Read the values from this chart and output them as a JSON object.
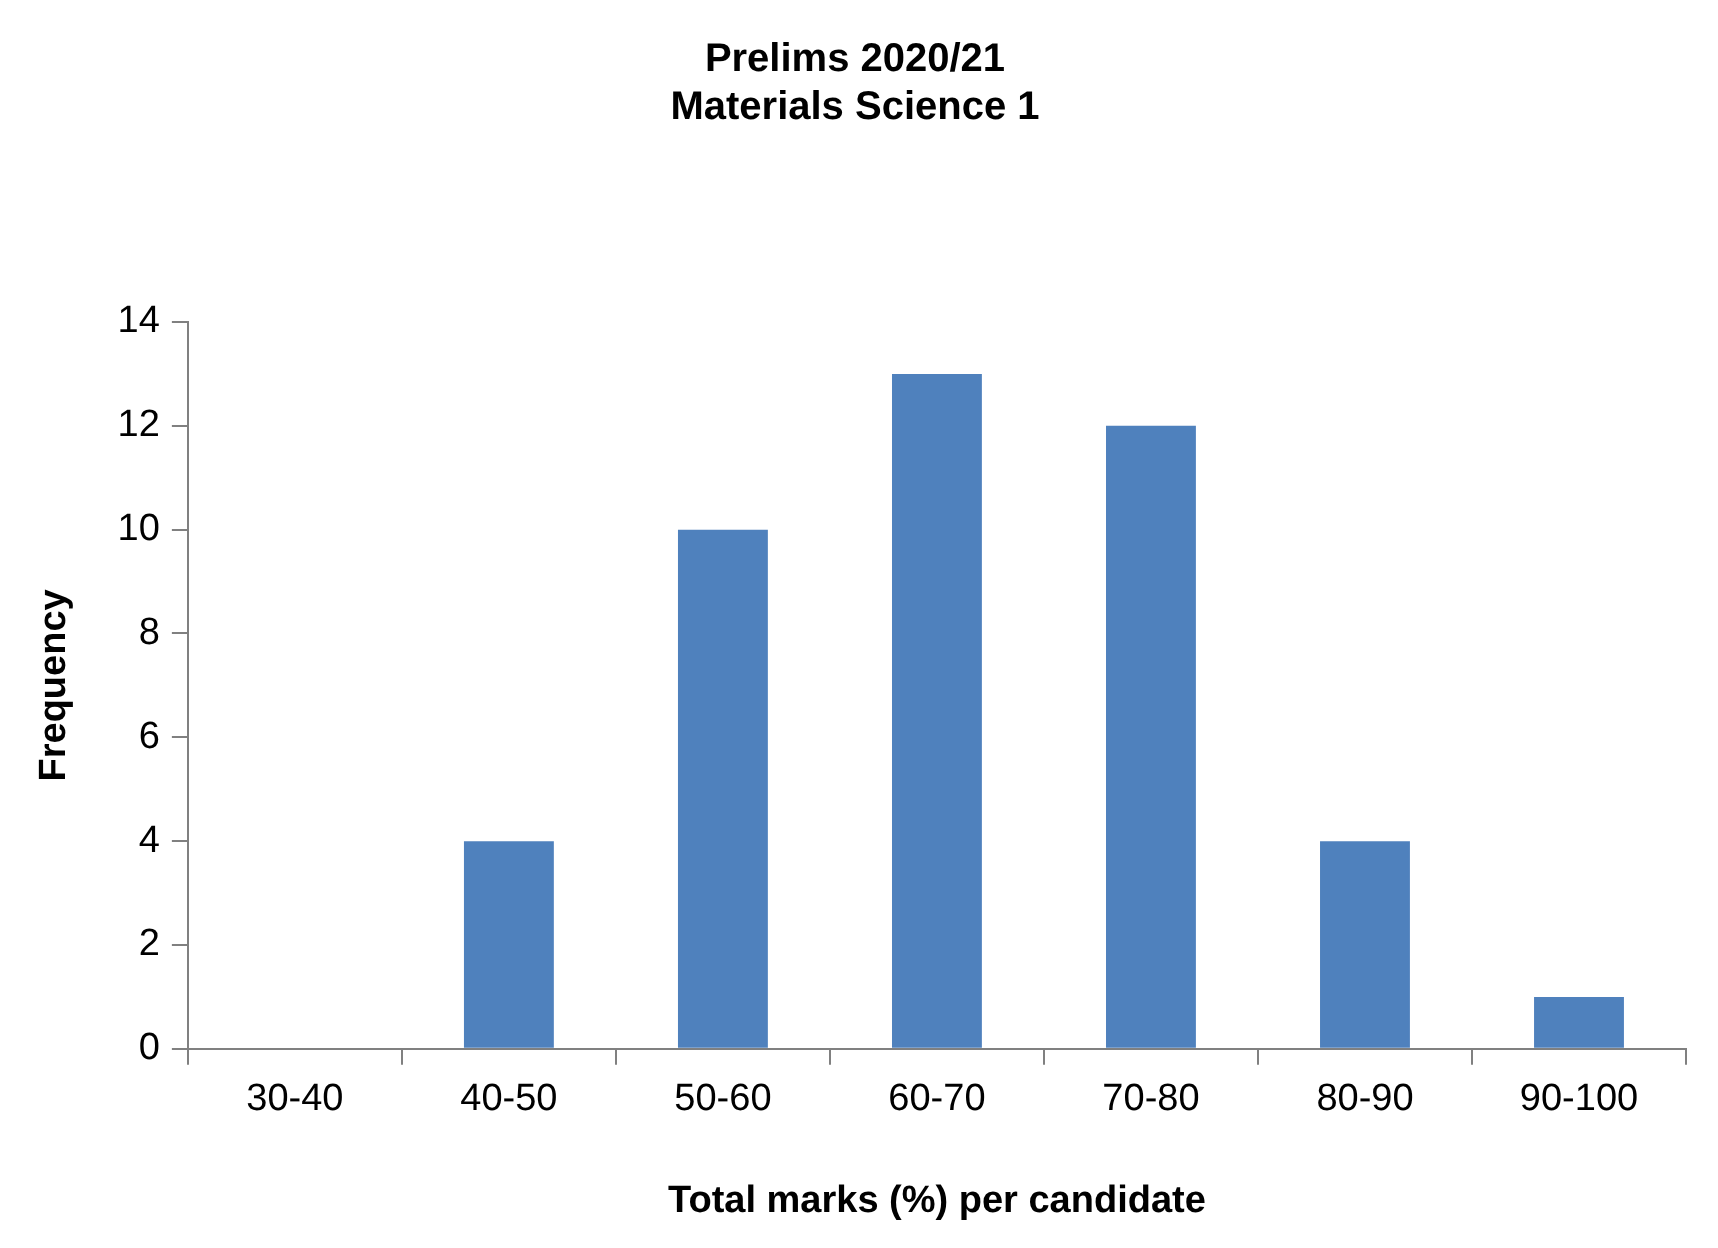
{
  "chart_data": {
    "type": "bar",
    "title": "Prelims 2020/21\nMaterials Science 1",
    "xlabel": "Total marks (%) per candidate",
    "ylabel": "Frequency",
    "categories": [
      "30-40",
      "40-50",
      "50-60",
      "60-70",
      "70-80",
      "80-90",
      "90-100"
    ],
    "values": [
      0,
      4,
      10,
      13,
      12,
      4,
      1
    ],
    "color": "#4f81bd",
    "ylim": [
      0,
      14
    ],
    "yticks": [
      0,
      2,
      4,
      6,
      8,
      10,
      12,
      14
    ],
    "grid": false,
    "legend": false
  }
}
